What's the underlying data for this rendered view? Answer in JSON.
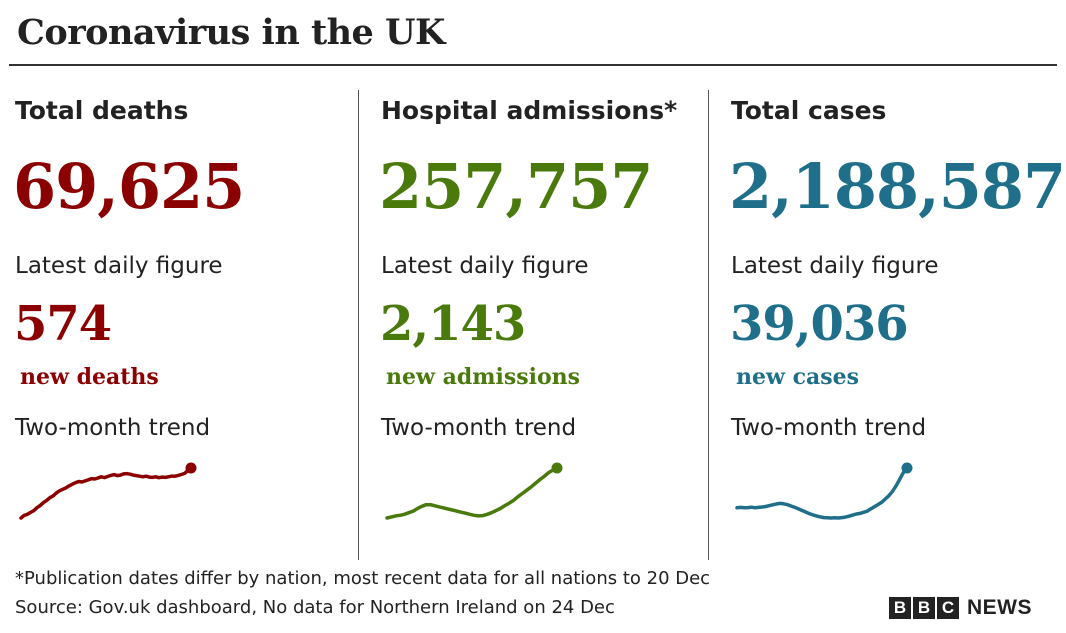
{
  "title": "Coronavirus in the UK",
  "colors": {
    "deaths": "#8b0000",
    "admissions": "#4a7a0c",
    "cases": "#1f6f8b"
  },
  "panels": [
    {
      "heading": "Total deaths",
      "total": "69,625",
      "daily_label": "Latest daily figure",
      "daily_value": "574",
      "daily_unit": "new deaths",
      "trend_label": "Two-month trend"
    },
    {
      "heading": "Hospital admissions*",
      "total": "257,757",
      "daily_label": "Latest daily figure",
      "daily_value": "2,143",
      "daily_unit": "new admissions",
      "trend_label": "Two-month trend"
    },
    {
      "heading": "Total cases",
      "total": "2,188,587",
      "daily_label": "Latest daily figure",
      "daily_value": "39,036",
      "daily_unit": "new cases",
      "trend_label": "Two-month trend"
    }
  ],
  "footnote": "*Publication dates differ by nation, most recent data for all nations to 20 Dec",
  "source": "Source: Gov.uk dashboard, No data for Northern Ireland on 24 Dec",
  "branding": {
    "letters": [
      "B",
      "B",
      "C"
    ],
    "news": "NEWS"
  },
  "chart_data": [
    {
      "type": "line",
      "series": [
        {
          "color": "#8b0000",
          "values": [
            100,
            118,
            125,
            138,
            150,
            170,
            185,
            205,
            220,
            238,
            250,
            270,
            285,
            295,
            305,
            318,
            330,
            340,
            348,
            345,
            352,
            360,
            368,
            365,
            372,
            380,
            375,
            382,
            390,
            395,
            388,
            392,
            400,
            402,
            398,
            392,
            388,
            384,
            380,
            384,
            378,
            376,
            380,
            374,
            378,
            376,
            380,
            385,
            384,
            390,
            396,
            403,
            422,
            440
          ]
        }
      ]
    },
    {
      "type": "line",
      "series": [
        {
          "color": "#4a7a0c",
          "values": [
            1200,
            1220,
            1240,
            1250,
            1270,
            1300,
            1330,
            1380,
            1420,
            1450,
            1450,
            1430,
            1410,
            1390,
            1370,
            1350,
            1330,
            1310,
            1290,
            1270,
            1250,
            1240,
            1245,
            1270,
            1300,
            1340,
            1380,
            1430,
            1480,
            1530,
            1600,
            1660,
            1720,
            1780,
            1850,
            1920,
            1980,
            2050,
            2100,
            2143
          ]
        }
      ]
    },
    {
      "type": "line",
      "series": [
        {
          "color": "#1f6f8b",
          "values": [
            21000,
            21200,
            21000,
            21100,
            21300,
            21000,
            21200,
            21400,
            21600,
            22000,
            22400,
            22800,
            23000,
            22800,
            22400,
            21800,
            21200,
            20500,
            19800,
            19100,
            18400,
            17800,
            17300,
            16900,
            16600,
            16500,
            16400,
            16500,
            16400,
            16600,
            16800,
            17200,
            17700,
            18200,
            18500,
            19000,
            19500,
            20500,
            21500,
            22500,
            23500,
            25000,
            26500,
            28500,
            31000,
            34000,
            37000,
            39036
          ]
        }
      ]
    }
  ]
}
